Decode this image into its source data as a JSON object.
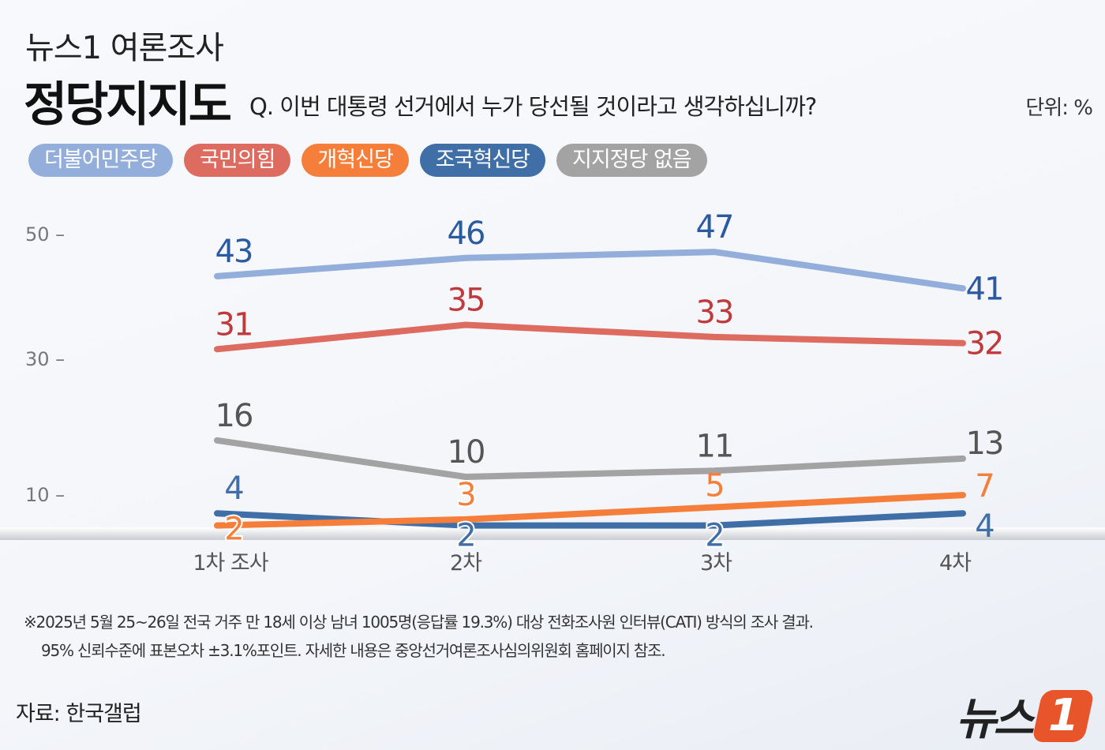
{
  "header": {
    "kicker": "뉴스1 여론조사",
    "title": "정당지지도",
    "question": "Q. 이번 대통령 선거에서 누가 당선될 것이라고 생각하십니까?",
    "unit": "단위: %"
  },
  "chart_data": {
    "type": "line",
    "categories": [
      "1차 조사",
      "2차",
      "3차",
      "4차"
    ],
    "yticks": [
      50,
      30,
      10
    ],
    "ylim": [
      2,
      50
    ],
    "grid": false,
    "legend_placement": "top-left",
    "series": [
      {
        "name": "더불어민주당",
        "values": [
          43,
          46,
          47,
          41
        ],
        "line_color": "#93aedb",
        "label_color": "#2b5aa0"
      },
      {
        "name": "국민의힘",
        "values": [
          31,
          35,
          33,
          32
        ],
        "line_color": "#de6b60",
        "label_color": "#c0393b"
      },
      {
        "name": "개혁신당",
        "values": [
          2,
          3,
          5,
          7
        ],
        "line_color": "#f57f3a",
        "label_color": "#f57f3a"
      },
      {
        "name": "조국혁신당",
        "values": [
          4,
          2,
          2,
          4
        ],
        "line_color": "#3f6fa6",
        "label_color": "#3f6fa6"
      },
      {
        "name": "지지정당 없음",
        "values": [
          16,
          10,
          11,
          13
        ],
        "line_color": "#a3a3a3",
        "label_color": "#555555"
      }
    ],
    "legend_colors": [
      "#93aedb",
      "#de6b60",
      "#f57f3a",
      "#3f6fa6",
      "#a3a3a3"
    ]
  },
  "footer": {
    "note1": "※2025년 5월 25~26일 전국 거주 만 18세 이상 남녀 1005명(응답률 19.3%) 대상 전화조사원 인터뷰(CATI) 방식의 조사 결과.",
    "note2": "95% 신뢰수준에 표본오차 ±3.1%포인트. 자세한 내용은 중앙선거여론조사심의위원회 홈페이지 참조.",
    "source": "자료: 한국갤럽",
    "logo_text": "뉴스",
    "logo_num": "1"
  }
}
